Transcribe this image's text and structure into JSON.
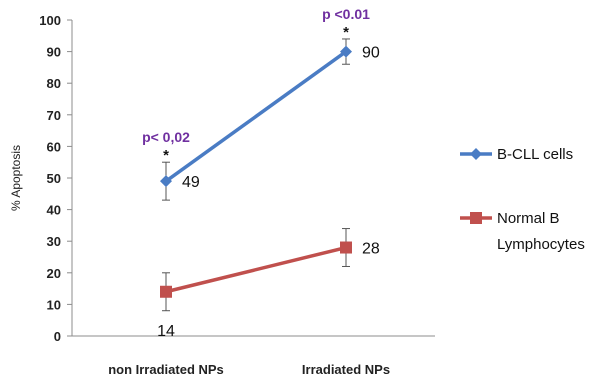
{
  "chart_data": {
    "type": "line",
    "title": "",
    "xlabel": "",
    "ylabel": "% Apoptosis",
    "ylim": [
      0,
      100
    ],
    "yticks": [
      "0",
      "10",
      "20",
      "30",
      "40",
      "50",
      "60",
      "70",
      "80",
      "90",
      "100"
    ],
    "categories": [
      "non Irradiated NPs",
      "Irradiated NPs"
    ],
    "grid": false,
    "legend_position": "right",
    "series": [
      {
        "name": "B-CLL cells",
        "values": [
          49,
          90
        ],
        "error_low": [
          43,
          86
        ],
        "error_high": [
          55,
          94
        ],
        "labels": [
          "49",
          "90"
        ],
        "color": "#4a7cc4",
        "marker": "diamond"
      },
      {
        "name": "Normal B Lymphocytes",
        "name_lines": [
          "Normal B",
          "Lymphocytes"
        ],
        "values": [
          14,
          28
        ],
        "error_low": [
          8,
          22
        ],
        "error_high": [
          20,
          34
        ],
        "labels": [
          "14",
          "28"
        ],
        "color": "#c0504d",
        "marker": "square"
      }
    ],
    "annotations": [
      {
        "category": 0,
        "text": "p< 0,02",
        "star": "*"
      },
      {
        "category": 1,
        "text": "p <0.01",
        "star": "*"
      }
    ]
  }
}
